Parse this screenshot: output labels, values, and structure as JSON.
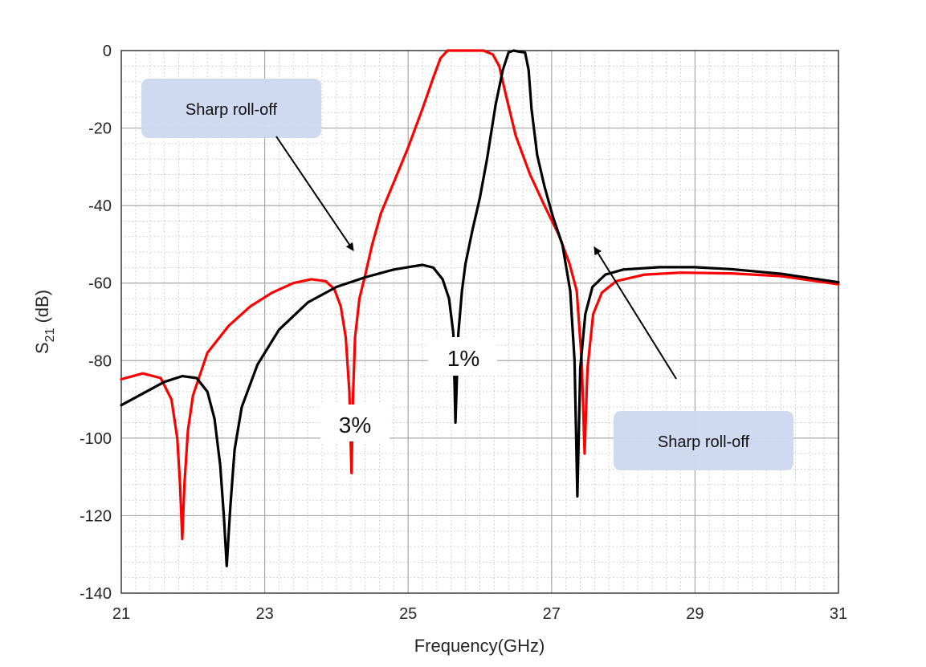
{
  "chart_data": {
    "type": "line",
    "title": "",
    "xlabel": "Frequency(GHz)",
    "ylabel_main": "S",
    "ylabel_sub": "21",
    "ylabel_unit": "(dB)",
    "xlim": [
      21,
      31
    ],
    "ylim": [
      -140,
      0
    ],
    "xticks": [
      21,
      23,
      25,
      27,
      29,
      31
    ],
    "yticks": [
      0,
      -20,
      -40,
      -60,
      -80,
      -100,
      -120,
      -140
    ],
    "grid": true,
    "minor_grid": true,
    "series": [
      {
        "color": "#ff0000",
        "points": [
          [
            21.0,
            -84.8
          ],
          [
            21.3,
            -83.3
          ],
          [
            21.55,
            -84.5
          ],
          [
            21.7,
            -90
          ],
          [
            21.78,
            -100
          ],
          [
            21.82,
            -112
          ],
          [
            21.85,
            -126
          ],
          [
            21.88,
            -112
          ],
          [
            21.93,
            -98
          ],
          [
            22.0,
            -89
          ],
          [
            22.2,
            -78
          ],
          [
            22.5,
            -71
          ],
          [
            22.8,
            -66
          ],
          [
            23.1,
            -62.5
          ],
          [
            23.4,
            -60
          ],
          [
            23.65,
            -59
          ],
          [
            23.85,
            -59.5
          ],
          [
            23.97,
            -61.5
          ],
          [
            24.06,
            -66
          ],
          [
            24.13,
            -74
          ],
          [
            24.18,
            -88
          ],
          [
            24.21,
            -109
          ],
          [
            24.23,
            -90
          ],
          [
            24.26,
            -74
          ],
          [
            24.32,
            -64
          ],
          [
            24.4,
            -58
          ],
          [
            24.5,
            -50
          ],
          [
            24.62,
            -42
          ],
          [
            24.8,
            -34
          ],
          [
            25.0,
            -25
          ],
          [
            25.2,
            -15
          ],
          [
            25.35,
            -7
          ],
          [
            25.45,
            -2
          ],
          [
            25.55,
            0
          ],
          [
            25.8,
            0
          ],
          [
            26.05,
            0
          ],
          [
            26.18,
            -1
          ],
          [
            26.27,
            -4
          ],
          [
            26.37,
            -12
          ],
          [
            26.5,
            -22
          ],
          [
            26.7,
            -32
          ],
          [
            26.9,
            -40
          ],
          [
            27.1,
            -47.5
          ],
          [
            27.25,
            -55
          ],
          [
            27.35,
            -62
          ],
          [
            27.42,
            -80
          ],
          [
            27.46,
            -104
          ],
          [
            27.5,
            -82
          ],
          [
            27.58,
            -68
          ],
          [
            27.7,
            -62.5
          ],
          [
            27.9,
            -59.5
          ],
          [
            28.3,
            -57.8
          ],
          [
            28.8,
            -57.3
          ],
          [
            29.5,
            -57.5
          ],
          [
            30.2,
            -58.2
          ],
          [
            31.0,
            -60.3
          ]
        ]
      },
      {
        "color": "#000000",
        "points": [
          [
            21.0,
            -91.5
          ],
          [
            21.3,
            -88.5
          ],
          [
            21.6,
            -85.5
          ],
          [
            21.85,
            -84
          ],
          [
            22.05,
            -84.5
          ],
          [
            22.2,
            -88
          ],
          [
            22.3,
            -95
          ],
          [
            22.38,
            -107
          ],
          [
            22.43,
            -120
          ],
          [
            22.47,
            -133
          ],
          [
            22.52,
            -118
          ],
          [
            22.58,
            -103
          ],
          [
            22.68,
            -92
          ],
          [
            22.9,
            -81
          ],
          [
            23.2,
            -72
          ],
          [
            23.6,
            -65
          ],
          [
            24.0,
            -61
          ],
          [
            24.4,
            -58.5
          ],
          [
            24.8,
            -56.5
          ],
          [
            25.2,
            -55.3
          ],
          [
            25.35,
            -56
          ],
          [
            25.48,
            -59
          ],
          [
            25.57,
            -64
          ],
          [
            25.63,
            -73
          ],
          [
            25.66,
            -96
          ],
          [
            25.7,
            -73
          ],
          [
            25.75,
            -62
          ],
          [
            25.8,
            -55
          ],
          [
            25.9,
            -46
          ],
          [
            26.0,
            -38
          ],
          [
            26.1,
            -28
          ],
          [
            26.22,
            -14
          ],
          [
            26.32,
            -5
          ],
          [
            26.4,
            -0.5
          ],
          [
            26.47,
            0
          ],
          [
            26.55,
            -0.3
          ],
          [
            26.63,
            -0.5
          ],
          [
            26.68,
            -5
          ],
          [
            26.72,
            -15
          ],
          [
            26.8,
            -27
          ],
          [
            26.9,
            -35
          ],
          [
            27.02,
            -43
          ],
          [
            27.15,
            -50
          ],
          [
            27.26,
            -62
          ],
          [
            27.32,
            -80
          ],
          [
            27.36,
            -115
          ],
          [
            27.4,
            -82
          ],
          [
            27.47,
            -68
          ],
          [
            27.57,
            -61
          ],
          [
            27.75,
            -57.8
          ],
          [
            28.0,
            -56.5
          ],
          [
            28.5,
            -55.9
          ],
          [
            29.0,
            -55.9
          ],
          [
            29.5,
            -56.4
          ],
          [
            30.2,
            -57.6
          ],
          [
            31.0,
            -59.8
          ]
        ]
      }
    ],
    "annotations": [
      {
        "text": "Sharp roll-off",
        "box": "top-left"
      },
      {
        "text": "Sharp roll-off",
        "box": "bottom-right"
      },
      {
        "text": "3%"
      },
      {
        "text": "1%"
      }
    ]
  }
}
